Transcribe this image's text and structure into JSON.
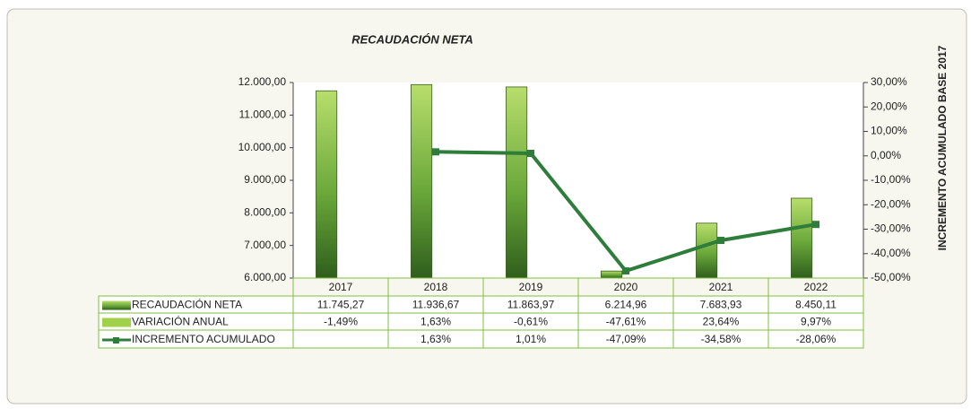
{
  "chart_data": {
    "type": "bar",
    "title": "RECAUDACIÓN NETA",
    "y2_label": "INCREMENTO ACUMULADO BASE 2017",
    "categories": [
      "2017",
      "2018",
      "2019",
      "2020",
      "2021",
      "2022"
    ],
    "ylim": [
      6000,
      12000
    ],
    "yticks": [
      {
        "value": 6000,
        "label": "6.000,00"
      },
      {
        "value": 7000,
        "label": "7.000,00"
      },
      {
        "value": 8000,
        "label": "8.000,00"
      },
      {
        "value": 9000,
        "label": "9.000,00"
      },
      {
        "value": 10000,
        "label": "10.000,00"
      },
      {
        "value": 11000,
        "label": "11.000,00"
      },
      {
        "value": 12000,
        "label": "12.000,00"
      }
    ],
    "y2lim": [
      -50,
      30
    ],
    "y2ticks": [
      {
        "value": -50,
        "label": "-50,00%"
      },
      {
        "value": -40,
        "label": "-40,00%"
      },
      {
        "value": -30,
        "label": "-30,00%"
      },
      {
        "value": -20,
        "label": "-20,00%"
      },
      {
        "value": -10,
        "label": "-10,00%"
      },
      {
        "value": 0,
        "label": "0,00%"
      },
      {
        "value": 10,
        "label": "10,00%"
      },
      {
        "value": 20,
        "label": "20,00%"
      },
      {
        "value": 30,
        "label": "30,00%"
      }
    ],
    "series": [
      {
        "name": "RECAUDACIÓN NETA",
        "type": "bar",
        "color": "#5a9a2a",
        "values": [
          11745.27,
          11936.67,
          11863.97,
          6214.96,
          7683.93,
          8450.11
        ],
        "value_labels": [
          "11.745,27",
          "11.936,67",
          "11.863,97",
          "6.214,96",
          "7.683,93",
          "8.450,11"
        ]
      },
      {
        "name": "VARIACIÓN ANUAL",
        "type": "table",
        "color": "#9fd14a",
        "values": [
          -1.49,
          1.63,
          -0.61,
          -47.61,
          23.64,
          9.97
        ],
        "value_labels": [
          "-1,49%",
          "1,63%",
          "-0,61%",
          "-47,61%",
          "23,64%",
          "9,97%"
        ]
      },
      {
        "name": "INCREMENTO ACUMULADO",
        "type": "line",
        "axis": "y2",
        "color": "#2e7d3a",
        "values": [
          null,
          1.63,
          1.01,
          -47.09,
          -34.58,
          -28.06
        ],
        "value_labels": [
          null,
          "1,63%",
          "1,01%",
          "-47,09%",
          "-34,58%",
          "-28,06%"
        ]
      }
    ]
  }
}
